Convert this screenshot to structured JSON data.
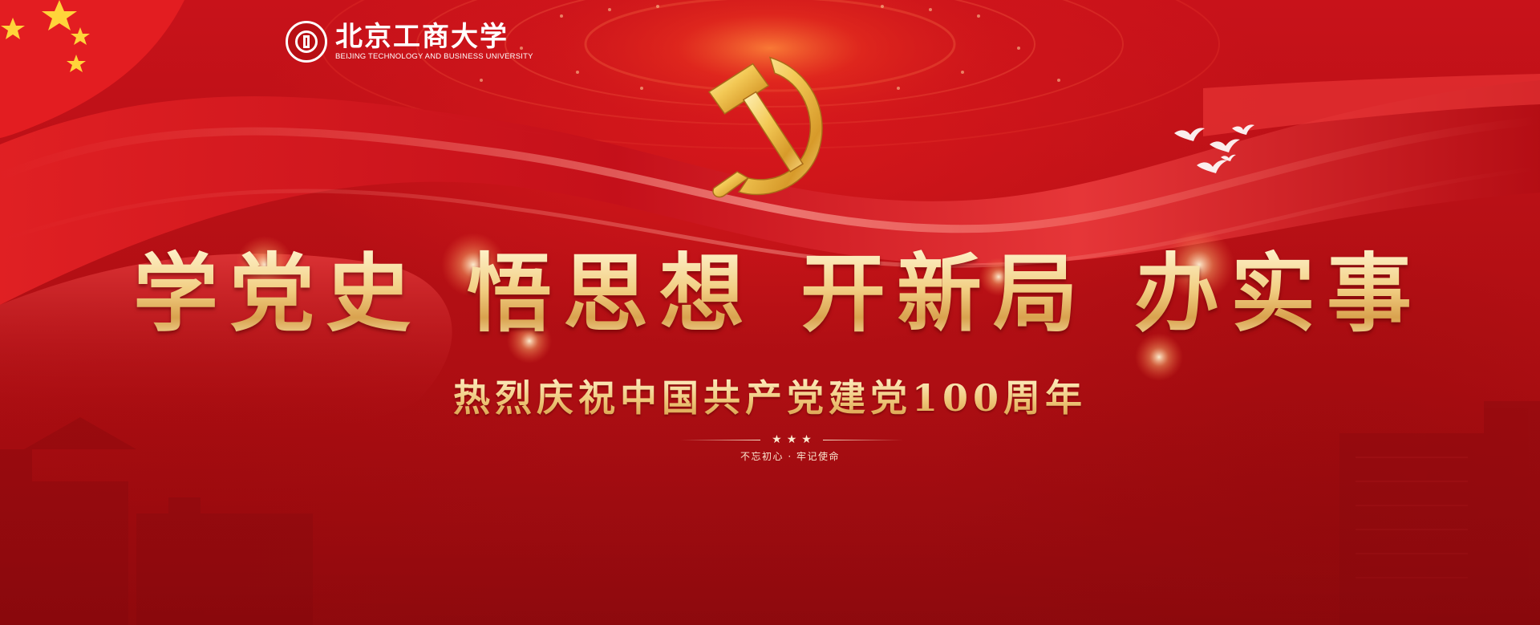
{
  "logo": {
    "name_cn": "北京工商大学",
    "name_en": "BEIJING TECHNOLOGY AND BUSINESS UNIVERSITY"
  },
  "headline": {
    "groups": [
      "学党史",
      "悟思想",
      "开新局",
      "办实事"
    ]
  },
  "subheadline": "热烈庆祝中国共产党建党100周年",
  "divider_stars": "★★★",
  "tagline": "不忘初心 · 牢记使命",
  "colors": {
    "background": "#b50f12",
    "gold": "#f2cf84",
    "white": "#ffffff"
  },
  "icons": [
    "university-seal-icon",
    "hammer-and-sickle-icon",
    "dove-icon",
    "flag-star-icon"
  ]
}
